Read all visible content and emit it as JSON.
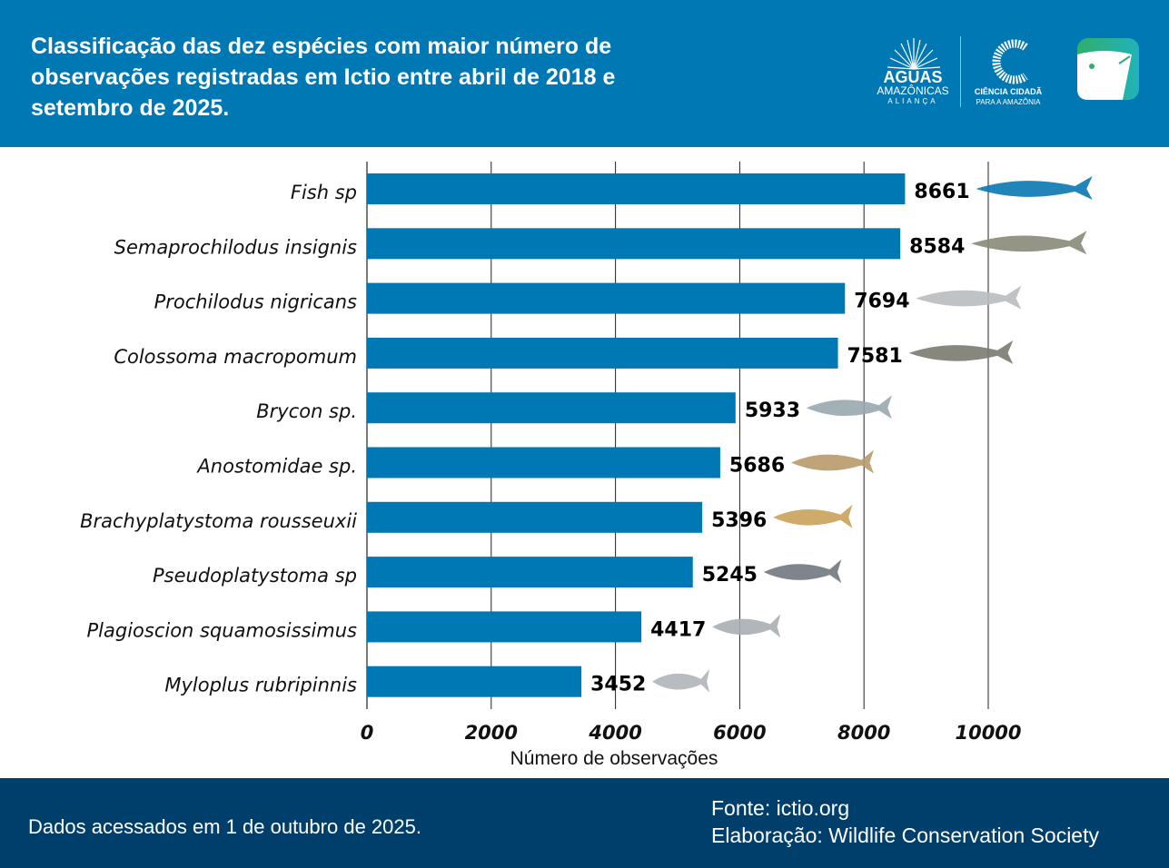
{
  "header": {
    "title": "Classificação das dez espécies com maior número de observações registradas em Ictio entre abril de 2018 e setembro de 2025.",
    "logos": {
      "aguas_line1": "AGUAS",
      "aguas_line2": "AMAZÔNICAS",
      "aguas_line3": "ALIANÇA",
      "ciencia_line1": "CIÊNCIA CIDADÃ",
      "ciencia_line2": "PARA A AMAZÔNIA",
      "app_icon": "ictio-fish-icon"
    }
  },
  "chart_data": {
    "type": "bar",
    "orientation": "horizontal",
    "categories": [
      "Fish sp",
      "Semaprochilodus insignis",
      "Prochilodus nigricans",
      "Colossoma macropomum",
      "Brycon sp.",
      "Anostomidae sp.",
      "Brachyplatystoma rousseuxii",
      "Pseudoplatystoma sp",
      "Plagioscion squamosissimus",
      "Myloplus rubripinnis"
    ],
    "values": [
      8661,
      8584,
      7694,
      7581,
      5933,
      5686,
      5396,
      5245,
      4417,
      3452
    ],
    "xlabel": "Número de observações",
    "xlim": [
      0,
      10000
    ],
    "xticks": [
      0,
      2000,
      4000,
      6000,
      8000,
      10000
    ],
    "grid": "vertical",
    "bar_color": "#0078b4"
  },
  "footer": {
    "access": "Dados acessados em 1 de outubro de 2025.",
    "source": "Fonte: ictio.org",
    "credit": "Elaboração: Wildlife Conservation Society"
  }
}
